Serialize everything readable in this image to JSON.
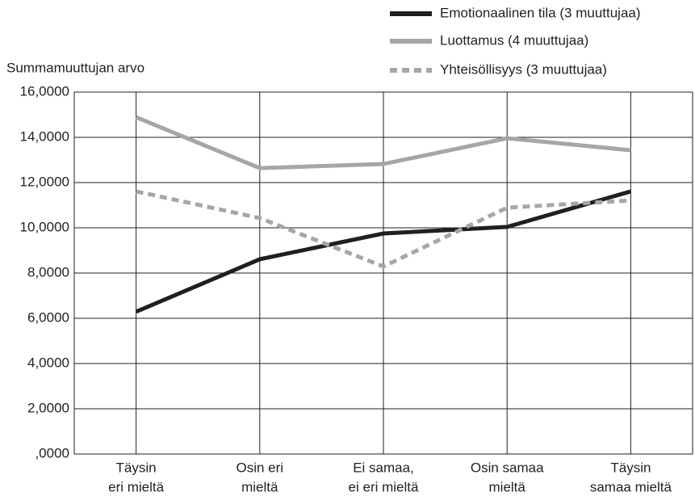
{
  "chart_data": {
    "type": "line",
    "y_axis_label": "Summamuuttujan arvo",
    "categories": [
      [
        "Täysin",
        "eri mieltä"
      ],
      [
        "Osin eri",
        "mieltä"
      ],
      [
        "Ei samaa,",
        "ei eri mieltä"
      ],
      [
        "Osin samaa",
        "mieltä"
      ],
      [
        "Täysin",
        "samaa mieltä"
      ]
    ],
    "series": [
      {
        "name": "Emotionaalinen tila (3 muuttujaa)",
        "color": "#231f20",
        "dashed": false,
        "values": [
          6.29,
          8.61,
          9.75,
          10.04,
          11.61
        ]
      },
      {
        "name": "Luottamus (4 muuttujaa)",
        "color": "#a6a6a6",
        "dashed": false,
        "values": [
          14.89,
          12.64,
          12.82,
          13.96,
          13.43
        ]
      },
      {
        "name": "Yhteisöllisyys (3 muuttujaa)",
        "color": "#a6a6a6",
        "dashed": true,
        "values": [
          11.61,
          10.43,
          8.29,
          10.89,
          11.21
        ]
      }
    ],
    "ylim": [
      0,
      16
    ],
    "yticks": [
      {
        "value": 0,
        "label": ",0000"
      },
      {
        "value": 2,
        "label": "2,0000"
      },
      {
        "value": 4,
        "label": "4,0000"
      },
      {
        "value": 6,
        "label": "6,0000"
      },
      {
        "value": 8,
        "label": "8,0000"
      },
      {
        "value": 10,
        "label": "10,0000"
      },
      {
        "value": 12,
        "label": "12,0000"
      },
      {
        "value": 14,
        "label": "14,0000"
      },
      {
        "value": 16,
        "label": "16,0000"
      }
    ],
    "grid": true,
    "legend": "top-right"
  }
}
